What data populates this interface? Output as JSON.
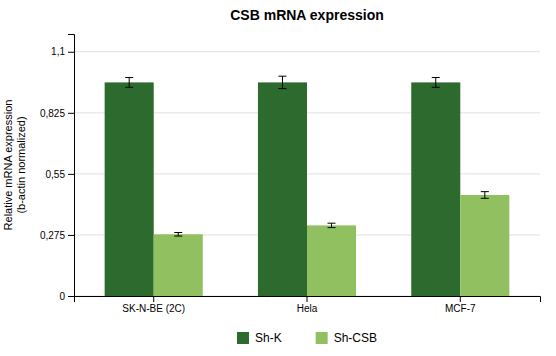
{
  "chart_data": {
    "type": "bar",
    "title": "CSB mRNA expression",
    "ylabel": "Relative mRNA expression\n(b-actin normalized)",
    "categories": [
      "SK-N-BE (2C)",
      "Hela",
      "MCF-7"
    ],
    "series": [
      {
        "name": "Sh-K",
        "color": "#2d6a2d",
        "values": [
          0.962,
          0.962,
          0.962
        ],
        "errors": [
          0.022,
          0.028,
          0.022
        ]
      },
      {
        "name": "Sh-CSB",
        "color": "#90c060",
        "values": [
          0.278,
          0.318,
          0.455
        ],
        "errors": [
          0.008,
          0.01,
          0.015
        ]
      }
    ],
    "ylim": [
      0,
      1.18
    ],
    "yticks": [
      0,
      {
        "value": 0.275,
        "label": "0,275"
      },
      {
        "value": 0.55,
        "label": "0,55"
      },
      {
        "value": 0.825,
        "label": "0,825"
      },
      {
        "value": 1.1,
        "label": "1,1"
      }
    ],
    "grid": true,
    "legend": "bottom"
  }
}
